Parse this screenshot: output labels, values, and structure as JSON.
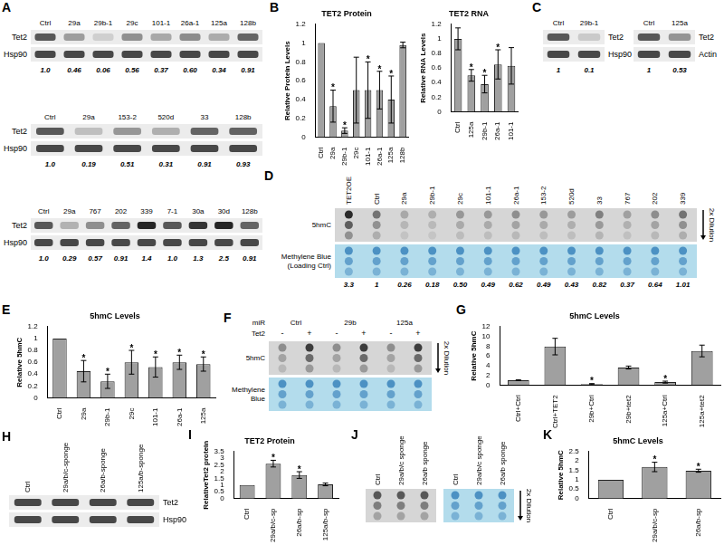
{
  "chart_data": [
    {
      "type": "bar",
      "panel": "B",
      "title": "TET2 Protein",
      "y_label": "Relative Protein Levels",
      "categories": [
        "Ctrl",
        "29a",
        "29b-1",
        "29c",
        "101-1",
        "26a-1",
        "125a",
        "128b"
      ],
      "values": [
        1,
        0.33,
        0.07,
        0.5,
        0.5,
        0.5,
        0.4,
        0.98
      ],
      "errors": [
        0,
        0.17,
        0.03,
        0.35,
        0.3,
        0.2,
        0.25,
        0.03
      ],
      "color": "#a0a0a0",
      "ylim": [
        0,
        1.2
      ],
      "yticks": [
        0,
        0.2,
        0.4,
        0.6,
        0.8,
        1,
        1.2
      ],
      "grid": false,
      "annotations": [
        {
          "category": "29a",
          "text": "*"
        },
        {
          "category": "29b-1",
          "text": "*"
        },
        {
          "category": "101-1",
          "text": "*"
        },
        {
          "category": "26a-1",
          "text": "*"
        },
        {
          "category": "125a",
          "text": "*"
        }
      ]
    },
    {
      "type": "bar",
      "title": "TET2 RNA",
      "y_label": "Relative RNA Levels",
      "categories": [
        "Ctrl",
        "125a",
        "29b-1",
        "26a-1",
        "101-1"
      ],
      "values": [
        1,
        0.5,
        0.38,
        0.65,
        0.63
      ],
      "errors": [
        0.15,
        0.08,
        0.12,
        0.2,
        0.25
      ],
      "color": "#a0a0a0",
      "ylim": [
        0,
        1.2
      ],
      "yticks": [
        0,
        0.2,
        0.4,
        0.6,
        0.8,
        1,
        1.2
      ],
      "grid": false,
      "annotations": [
        {
          "category": "125a",
          "text": "*"
        },
        {
          "category": "29b-1",
          "text": "*"
        },
        {
          "category": "26a-1",
          "text": "*"
        }
      ]
    },
    {
      "type": "bar",
      "panel": "E",
      "title": "5hmC Levels",
      "y_label": "Relative 5hmC",
      "categories": [
        "Ctrl",
        "29a",
        "29b-1",
        "29c",
        "101-1",
        "26a-1",
        "125a"
      ],
      "values": [
        1,
        0.45,
        0.28,
        0.6,
        0.52,
        0.6,
        0.57
      ],
      "errors": [
        0,
        0.18,
        0.12,
        0.2,
        0.17,
        0.12,
        0.12
      ],
      "color": "#a0a0a0",
      "ylim": [
        0,
        1.2
      ],
      "yticks": [
        0,
        0.2,
        0.4,
        0.6,
        0.8,
        1,
        1.2
      ],
      "grid": false,
      "annotations": [
        {
          "category": "29a",
          "text": "*"
        },
        {
          "category": "29b-1",
          "text": "*"
        },
        {
          "category": "29c",
          "text": "*"
        },
        {
          "category": "101-1",
          "text": "*"
        },
        {
          "category": "26a-1",
          "text": "*"
        },
        {
          "category": "125a",
          "text": "*"
        }
      ]
    },
    {
      "type": "bar",
      "panel": "G",
      "title": "5hmC Levels",
      "y_label": "Relative 5hmC",
      "categories": [
        "Ctrl+Ctrl",
        "Ctrl+TET2",
        "29b+Ctrl",
        "29b+tet2",
        "125a+Ctrl",
        "125a+tet2"
      ],
      "values": [
        1,
        7.9,
        0.2,
        3.6,
        0.6,
        7
      ],
      "errors": [
        0.1,
        1.7,
        0.1,
        0.3,
        0.2,
        1.2
      ],
      "color": "#a0a0a0",
      "ylim": [
        0,
        12
      ],
      "yticks": [
        0,
        2,
        4,
        6,
        8,
        10,
        12
      ],
      "grid": false,
      "annotations": [
        {
          "category": "29b+Ctrl",
          "text": "*"
        },
        {
          "category": "125a+Ctrl",
          "text": "*"
        }
      ]
    },
    {
      "type": "bar",
      "panel": "I",
      "title": "TET2 Protein",
      "y_label": "RelativeTet2 protein",
      "categories": [
        "Ctrl",
        "29a/b/c-sp",
        "26a/b-sp",
        "125a/b-sp"
      ],
      "values": [
        1,
        2.6,
        1.75,
        1.05
      ],
      "errors": [
        0,
        0.25,
        0.25,
        0.1
      ],
      "color": "#a0a0a0",
      "ylim": [
        0,
        3.5
      ],
      "yticks": [
        0,
        0.5,
        1,
        1.5,
        2,
        2.5,
        3,
        3.5
      ],
      "grid": false,
      "annotations": [
        {
          "category": "29a/b/c-sp",
          "text": "*"
        },
        {
          "category": "26a/b-sp",
          "text": "*"
        }
      ]
    },
    {
      "type": "bar",
      "panel": "K",
      "title": "5hmC Levels",
      "y_label": "Relative 5hmC",
      "categories": [
        "Ctrl",
        "29a/b/c-sp",
        "26a/b-sp"
      ],
      "values": [
        1,
        1.68,
        1.48
      ],
      "errors": [
        0,
        0.25,
        0.08
      ],
      "color": "#a0a0a0",
      "ylim": [
        0,
        2.5
      ],
      "yticks": [
        0,
        0.5,
        1,
        1.5,
        2,
        2.5
      ],
      "grid": false,
      "annotations": [
        {
          "category": "29a/b/c-sp",
          "text": "*"
        },
        {
          "category": "26a/b-sp",
          "text": "*"
        }
      ]
    }
  ],
  "blots": [
    {
      "type": "western_blot",
      "panel": "A",
      "groups": [
        {
          "lanes": [
            "Ctrl",
            "29a",
            "29b-1",
            "29c",
            "101-1",
            "26a-1",
            "125a",
            "128b"
          ],
          "rows": [
            "Tet2",
            "Hsp90"
          ],
          "quantification": [
            "1.0",
            "0.46",
            "0.06",
            "0.56",
            "0.37",
            "0.60",
            "0.34",
            "0.91"
          ]
        },
        {
          "lanes": [
            "Ctrl",
            "29a",
            "153-2",
            "520d",
            "33",
            "128b"
          ],
          "rows": [
            "Tet2",
            "Hsp90"
          ],
          "quantification": [
            "1.0",
            "0.19",
            "0.51",
            "0.31",
            "0.91",
            "0.93"
          ]
        },
        {
          "lanes": [
            "Ctrl",
            "29a",
            "767",
            "202",
            "339",
            "7-1",
            "30a",
            "30d",
            "128b"
          ],
          "rows": [
            "Tet2",
            "Hsp90"
          ],
          "quantification": [
            "1.0",
            "0.29",
            "0.57",
            "0.91",
            "1.4",
            "1.0",
            "1.3",
            "2.5",
            "0.91"
          ]
        }
      ]
    },
    {
      "type": "western_blot",
      "panel": "C",
      "groups": [
        {
          "lanes": [
            "Ctrl",
            "29b-1"
          ],
          "rows": [
            "Tet2",
            "Hsp90"
          ],
          "quantification": [
            "1",
            "0.1"
          ]
        },
        {
          "lanes": [
            "Ctrl",
            "125a"
          ],
          "rows": [
            "Tet2",
            "Actin"
          ],
          "quantification": [
            "1",
            "0.53"
          ]
        }
      ]
    },
    {
      "type": "dot_blot",
      "panel": "D",
      "lanes": [
        "TET2OE",
        "Ctrl",
        "29a",
        "29b-1",
        "29c",
        "101-1",
        "26a-1",
        "153-2",
        "520d",
        "33",
        "767",
        "202",
        "339"
      ],
      "rows": [
        [
          "5hmC"
        ],
        [
          "Methylene Blue",
          "(Loading Ctrl)"
        ]
      ],
      "dilution": "2x Dilution",
      "quantification": [
        "3.3",
        "1",
        "0.26",
        "0.18",
        "0.50",
        "0.49",
        "0.62",
        "0.49",
        "0.43",
        "0.82",
        "0.37",
        "0.64",
        "1.01"
      ]
    },
    {
      "type": "dot_blot",
      "panel": "F",
      "header": "miR",
      "lane_header": "Tet2",
      "groups": [
        {
          "name": "Ctrl",
          "lanes": [
            "-",
            "+"
          ]
        },
        {
          "name": "29b",
          "lanes": [
            "-",
            "+"
          ]
        },
        {
          "name": "125a",
          "lanes": [
            "-",
            "+"
          ]
        }
      ],
      "rows": [
        [
          "5hmC"
        ],
        [
          "Methylene",
          "Blue"
        ]
      ],
      "dilution": "2x Dilution"
    },
    {
      "type": "western_blot",
      "panel": "H",
      "groups": [
        {
          "lanes": [
            "Ctrl",
            "29a/b/c-sponge",
            "26a/b-sponge",
            "125a/b-sponge"
          ],
          "rows": [
            "Tet2",
            "Hsp90"
          ]
        }
      ]
    },
    {
      "type": "dot_blot",
      "panel": "J",
      "lanes": [
        "Ctrl",
        "29a/b/c sponge",
        "26a/b sponge"
      ],
      "dilution": "2x Dilution"
    }
  ]
}
